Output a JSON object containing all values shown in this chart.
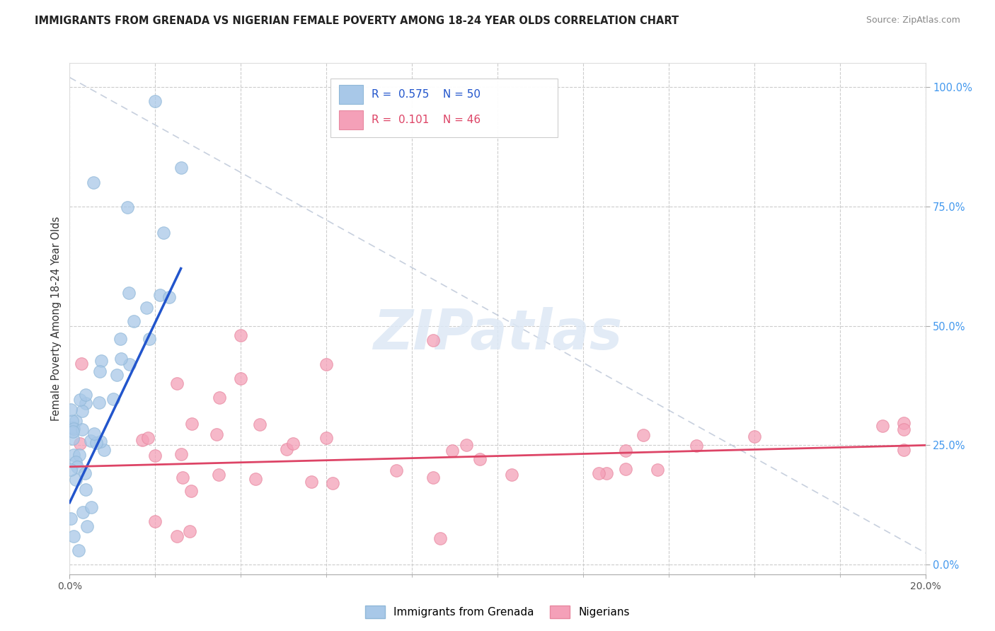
{
  "title": "IMMIGRANTS FROM GRENADA VS NIGERIAN FEMALE POVERTY AMONG 18-24 YEAR OLDS CORRELATION CHART",
  "source": "Source: ZipAtlas.com",
  "ylabel": "Female Poverty Among 18-24 Year Olds",
  "xlim": [
    0.0,
    0.2
  ],
  "ylim": [
    -0.02,
    1.05
  ],
  "right_yticks": [
    0.0,
    0.25,
    0.5,
    0.75,
    1.0
  ],
  "right_yticklabels": [
    "0.0%",
    "25.0%",
    "50.0%",
    "75.0%",
    "100.0%"
  ],
  "blue_color": "#a8c8e8",
  "pink_color": "#f4a0b8",
  "blue_line_color": "#2255cc",
  "pink_line_color": "#dd4466",
  "diag_line_color": "#b0bcd0",
  "watermark": "ZIPatlas",
  "blue_r": "0.575",
  "blue_n": "50",
  "pink_r": "0.101",
  "pink_n": "46"
}
